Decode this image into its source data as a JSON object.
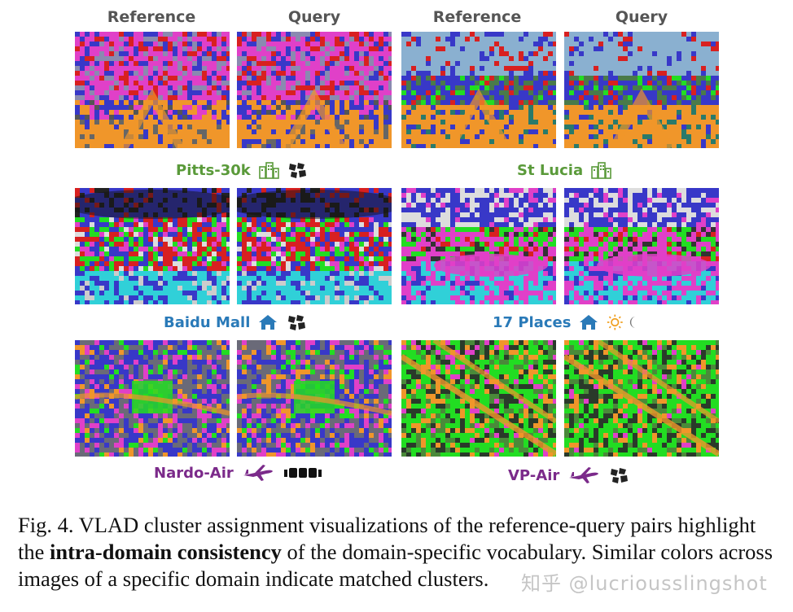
{
  "headers": [
    "Reference",
    "Query",
    "Reference",
    "Query"
  ],
  "datasets": [
    {
      "name": "Pitts-30k",
      "color": "#5a9a3a",
      "icons": [
        "city-icon",
        "map-fragments-icon"
      ]
    },
    {
      "name": "St Lucia",
      "color": "#5a9a3a",
      "icons": [
        "city-icon"
      ]
    },
    {
      "name": "Baidu Mall",
      "color": "#2a7ab8",
      "icons": [
        "house-icon",
        "map-fragments-icon"
      ]
    },
    {
      "name": "17 Places",
      "color": "#2a7ab8",
      "icons": [
        "house-icon",
        "sun-icon",
        "moon-icon"
      ]
    },
    {
      "name": "Nardo-Air",
      "color": "#7b2a8a",
      "icons": [
        "airplane-icon",
        "film-strip-icon"
      ]
    },
    {
      "name": "VP-Air",
      "color": "#7b2a8a",
      "icons": [
        "airplane-icon",
        "map-fragments-icon"
      ]
    }
  ],
  "caption": {
    "prefix": "Fig. 4.   VLAD cluster assignment visualizations of the reference-query pairs highlight the ",
    "bold": "intra-domain consistency",
    "suffix": " of the domain-specific vocabulary. Similar colors across images of a specific domain indicate matched clusters."
  },
  "watermark": "知乎 @lucriousslingshot",
  "colors": {
    "magenta": "#e040c8",
    "orange": "#f0962a",
    "blue": "#3838c8",
    "green": "#22dd22",
    "cyan": "#30d0d8",
    "red": "#d82020",
    "dark": "#222233"
  }
}
